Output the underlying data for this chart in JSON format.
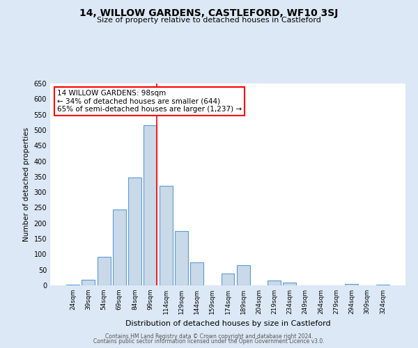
{
  "title": "14, WILLOW GARDENS, CASTLEFORD, WF10 3SJ",
  "subtitle": "Size of property relative to detached houses in Castleford",
  "xlabel": "Distribution of detached houses by size in Castleford",
  "ylabel": "Number of detached properties",
  "bar_labels": [
    "24sqm",
    "39sqm",
    "54sqm",
    "69sqm",
    "84sqm",
    "99sqm",
    "114sqm",
    "129sqm",
    "144sqm",
    "159sqm",
    "174sqm",
    "189sqm",
    "204sqm",
    "219sqm",
    "234sqm",
    "249sqm",
    "264sqm",
    "279sqm",
    "294sqm",
    "309sqm",
    "324sqm"
  ],
  "bar_values": [
    3,
    18,
    93,
    245,
    348,
    515,
    320,
    175,
    75,
    0,
    38,
    65,
    0,
    15,
    10,
    0,
    0,
    0,
    5,
    0,
    3
  ],
  "bar_color": "#c9d9e8",
  "bar_edge_color": "#5b9bd5",
  "ylim": [
    0,
    650
  ],
  "yticks": [
    0,
    50,
    100,
    150,
    200,
    250,
    300,
    350,
    400,
    450,
    500,
    550,
    600,
    650
  ],
  "red_line_index": 5,
  "annotation_title": "14 WILLOW GARDENS: 98sqm",
  "annotation_line1": "← 34% of detached houses are smaller (644)",
  "annotation_line2": "65% of semi-detached houses are larger (1,237) →",
  "footer_line1": "Contains HM Land Registry data © Crown copyright and database right 2024.",
  "footer_line2": "Contains public sector information licensed under the Open Government Licence v3.0.",
  "background_color": "#dce8f5",
  "plot_background": "#ffffff"
}
